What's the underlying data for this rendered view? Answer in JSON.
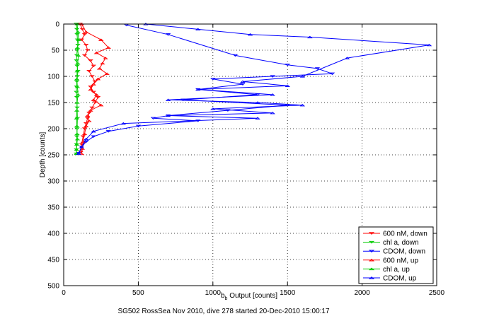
{
  "chart_data": {
    "type": "scatter",
    "xlabel": "b_b Output [counts]",
    "xlabel_main": "b",
    "xlabel_sub": "b",
    "xlabel_rest": " Output [counts]",
    "ylabel": "Depth [counts]",
    "caption": "SG502 RossSea Nov 2010, dive 278 started 20-Dec-2010 15:00:17",
    "xlim": [
      0,
      2500
    ],
    "ylim": [
      0,
      500
    ],
    "y_reversed": true,
    "grid": "dotted",
    "legend_position": "bottom-right",
    "x_ticks": [
      "0",
      "500",
      "1000",
      "1500",
      "2000",
      "2500"
    ],
    "y_ticks": [
      "0",
      "50",
      "100",
      "150",
      "200",
      "250",
      "300",
      "350",
      "400",
      "450",
      "500"
    ],
    "series": [
      {
        "name": "600 nM, down",
        "color": "#ff0000",
        "marker": "triangle-down",
        "line": true,
        "x": [
          110,
          125,
          140,
          120,
          150,
          160,
          140,
          180,
          200,
          170,
          190,
          210,
          180,
          200,
          230,
          210,
          190,
          170,
          160,
          150,
          140,
          130,
          120,
          115
        ],
        "y": [
          0,
          10,
          20,
          30,
          40,
          50,
          60,
          70,
          80,
          90,
          100,
          110,
          120,
          130,
          140,
          150,
          160,
          170,
          180,
          190,
          200,
          215,
          230,
          245
        ]
      },
      {
        "name": "chl a, down",
        "color": "#00cc00",
        "marker": "triangle-down",
        "line": true,
        "x": [
          85,
          88,
          90,
          92,
          95,
          90,
          88,
          86,
          90,
          95,
          92,
          88,
          86,
          85,
          88,
          90,
          92,
          90,
          88,
          86,
          85,
          84
        ],
        "y": [
          0,
          10,
          20,
          30,
          40,
          50,
          60,
          70,
          80,
          90,
          100,
          110,
          120,
          130,
          140,
          160,
          180,
          200,
          215,
          230,
          240,
          248
        ]
      },
      {
        "name": "CDOM, down",
        "color": "#0000ff",
        "marker": "triangle-down",
        "line": true,
        "x": [
          420,
          700,
          1150,
          1500,
          1700,
          1800,
          1400,
          1000,
          1200,
          900,
          1300,
          800,
          1500,
          1100,
          700,
          600,
          900,
          500,
          300,
          200,
          150,
          120,
          100
        ],
        "y": [
          2,
          20,
          60,
          78,
          85,
          95,
          100,
          105,
          115,
          125,
          135,
          145,
          155,
          165,
          175,
          180,
          185,
          195,
          205,
          215,
          225,
          235,
          247
        ]
      },
      {
        "name": "600 nM, up",
        "color": "#ff0000",
        "marker": "triangle-up",
        "line": true,
        "x": [
          120,
          150,
          250,
          300,
          220,
          280,
          260,
          240,
          290,
          230,
          200,
          180,
          220,
          200,
          250,
          180,
          160,
          170,
          150,
          140,
          130,
          125,
          120
        ],
        "y": [
          0,
          15,
          30,
          45,
          55,
          65,
          75,
          85,
          95,
          105,
          115,
          125,
          135,
          145,
          155,
          165,
          175,
          185,
          195,
          210,
          225,
          238,
          248
        ]
      },
      {
        "name": "chl a, up",
        "color": "#00cc00",
        "marker": "triangle-up",
        "line": true,
        "x": [
          90,
          95,
          100,
          92,
          98,
          94,
          90,
          88,
          92,
          96,
          90,
          88,
          86,
          88,
          90,
          92,
          88,
          86,
          85
        ],
        "y": [
          0,
          15,
          30,
          45,
          60,
          75,
          90,
          105,
          120,
          135,
          150,
          165,
          180,
          195,
          210,
          220,
          230,
          240,
          248
        ]
      },
      {
        "name": "CDOM, up",
        "color": "#0000ff",
        "marker": "triangle-up",
        "line": true,
        "x": [
          550,
          900,
          1250,
          1650,
          2450,
          1900,
          1600,
          1200,
          1500,
          900,
          1400,
          700,
          1300,
          1600,
          1000,
          1400,
          700,
          1300,
          400,
          200,
          150,
          120,
          100
        ],
        "y": [
          0,
          10,
          20,
          25,
          40,
          65,
          100,
          110,
          118,
          125,
          135,
          145,
          150,
          155,
          162,
          170,
          175,
          180,
          190,
          205,
          220,
          235,
          248
        ]
      }
    ]
  }
}
